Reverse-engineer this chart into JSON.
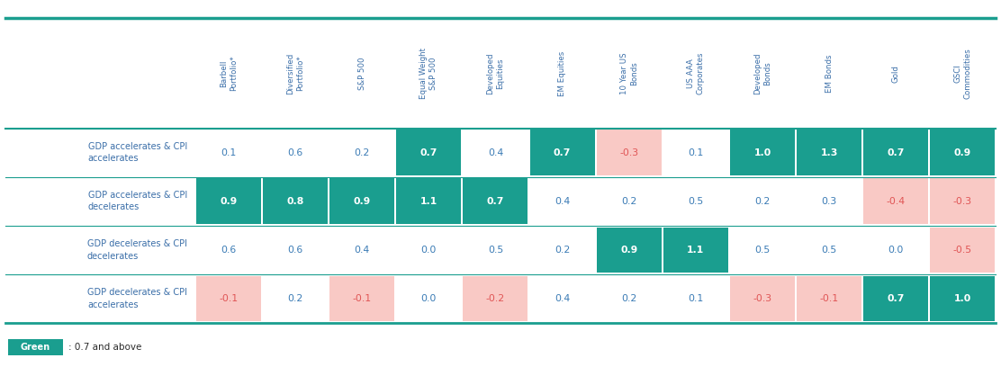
{
  "col_headers": [
    "Barbell\nPortfolio*",
    "Diversified\nPortfolio*",
    "S&P 500",
    "Equal Weight\nS&P 500",
    "Developed\nEquities",
    "EM Equities",
    "10 Year US\nBonds",
    "US AAA\nCorporates",
    "Developed\nBonds",
    "EM Bonds",
    "Gold",
    "GSCI\nCommodities"
  ],
  "row_headers": [
    "GDP accelerates & CPI\naccelerates",
    "GDP accelerates & CPI\ndecelerates",
    "GDP decelerates & CPI\ndecelerates",
    "GDP decelerates & CPI\naccelerates"
  ],
  "values": [
    [
      0.1,
      0.6,
      0.2,
      0.7,
      0.4,
      0.7,
      -0.3,
      0.1,
      1.0,
      1.3,
      0.7,
      0.9
    ],
    [
      0.9,
      0.8,
      0.9,
      1.1,
      0.7,
      0.4,
      0.2,
      0.5,
      0.2,
      0.3,
      -0.4,
      -0.3
    ],
    [
      0.6,
      0.6,
      0.4,
      0.0,
      0.5,
      0.2,
      0.9,
      1.1,
      0.5,
      0.5,
      0.0,
      -0.5
    ],
    [
      -0.1,
      0.2,
      -0.1,
      0.0,
      -0.2,
      0.4,
      0.2,
      0.1,
      -0.3,
      -0.1,
      0.7,
      1.0
    ]
  ],
  "green_color": "#1a9e8f",
  "pink_color": "#f9c9c5",
  "white_color": "#ffffff",
  "green_text": "#ffffff",
  "pink_text": "#e05555",
  "normal_text": "#3a7bb5",
  "header_text_color": "#3a6ea8",
  "row_header_text_color": "#3a6ea8",
  "border_color": "#1a9e8f",
  "dark_border_color": "#1a3a5c",
  "background_color": "#ffffff",
  "legend_green": "#1a9e8f",
  "legend_text": ": 0.7 and above",
  "threshold": 0.7,
  "negative_threshold": 0.0
}
